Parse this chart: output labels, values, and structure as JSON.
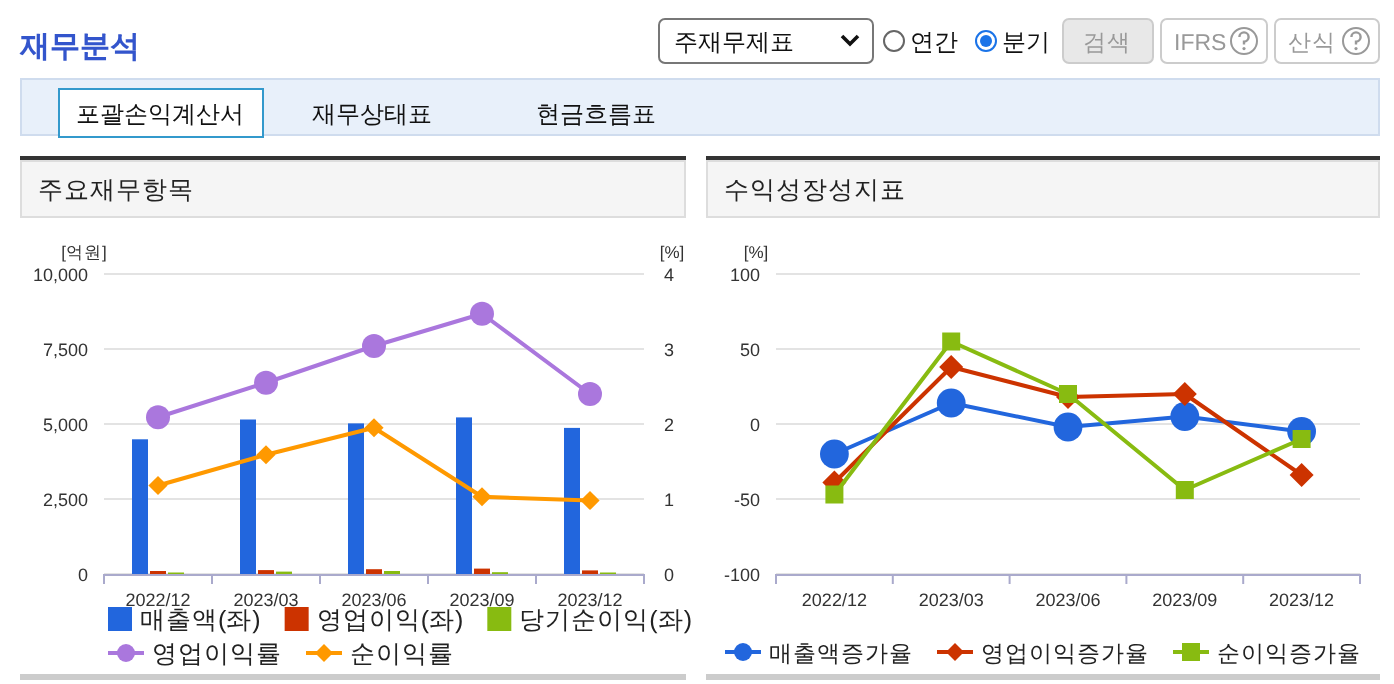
{
  "chart_data": [
    {
      "type": "other",
      "title": "재무분석",
      "annotations": [
        "주재무제표",
        "연간",
        "분기",
        "검색",
        "IFRS",
        "산식",
        "포괄손익계산서",
        "재무상태표",
        "현금흐름표"
      ]
    },
    {
      "type": "bar",
      "title": "주요재무항목",
      "ylabel": "[억원]",
      "y2label": "[%]",
      "categories": [
        "2022/12",
        "2023/03",
        "2023/06",
        "2023/09",
        "2023/12"
      ],
      "series": [
        {
          "name": "매출액(좌)",
          "color": "#2266dd",
          "values": [
            4490,
            5150,
            5020,
            5220,
            4870
          ]
        },
        {
          "name": "영업이익(좌)",
          "color": "#cc3300",
          "values": [
            100,
            130,
            160,
            180,
            120
          ]
        },
        {
          "name": "당기순이익(좌)",
          "color": "#88bb11",
          "values": [
            50,
            80,
            100,
            60,
            50
          ]
        },
        {
          "name": "영업이익률",
          "color": "#aa77dd",
          "type": "line",
          "axis": "y2",
          "marker": "circle",
          "values": [
            2.09,
            2.55,
            3.04,
            3.47,
            2.4
          ]
        },
        {
          "name": "순이익률",
          "color": "#ff9900",
          "type": "line",
          "axis": "y2",
          "marker": "diamond",
          "values": [
            1.18,
            1.59,
            1.95,
            1.03,
            0.98
          ]
        }
      ],
      "ylim": [
        0,
        10000
      ],
      "yticks": [
        0,
        {
          "value": 2500,
          "label": "2,500"
        },
        {
          "value": 5000,
          "label": "5,000"
        },
        {
          "value": 7500,
          "label": "7,500"
        },
        {
          "value": 10000,
          "label": "10,000"
        }
      ],
      "y2lim": [
        0,
        4
      ],
      "y2ticks": [
        0,
        1,
        2,
        3,
        4
      ],
      "grid": "y",
      "legend": "bottom"
    },
    {
      "type": "line",
      "title": "수익성장성지표",
      "ylabel": "[%]",
      "categories": [
        "2022/12",
        "2023/03",
        "2023/06",
        "2023/09",
        "2023/12"
      ],
      "series": [
        {
          "name": "매출액증가율",
          "color": "#2266dd",
          "marker": "circle",
          "values": [
            -20,
            14,
            -2,
            5,
            -5
          ]
        },
        {
          "name": "영업이익증가율",
          "color": "#cc3300",
          "marker": "diamond",
          "values": [
            -39,
            38,
            18,
            20,
            -34
          ]
        },
        {
          "name": "순이익증가율",
          "color": "#88bb11",
          "marker": "square",
          "values": [
            -47,
            55,
            20,
            -44,
            -10
          ]
        }
      ],
      "ylim": [
        -100,
        100
      ],
      "yticks": [
        -100,
        -50,
        0,
        50,
        100
      ],
      "grid": "y",
      "legend": "bottom"
    }
  ]
}
